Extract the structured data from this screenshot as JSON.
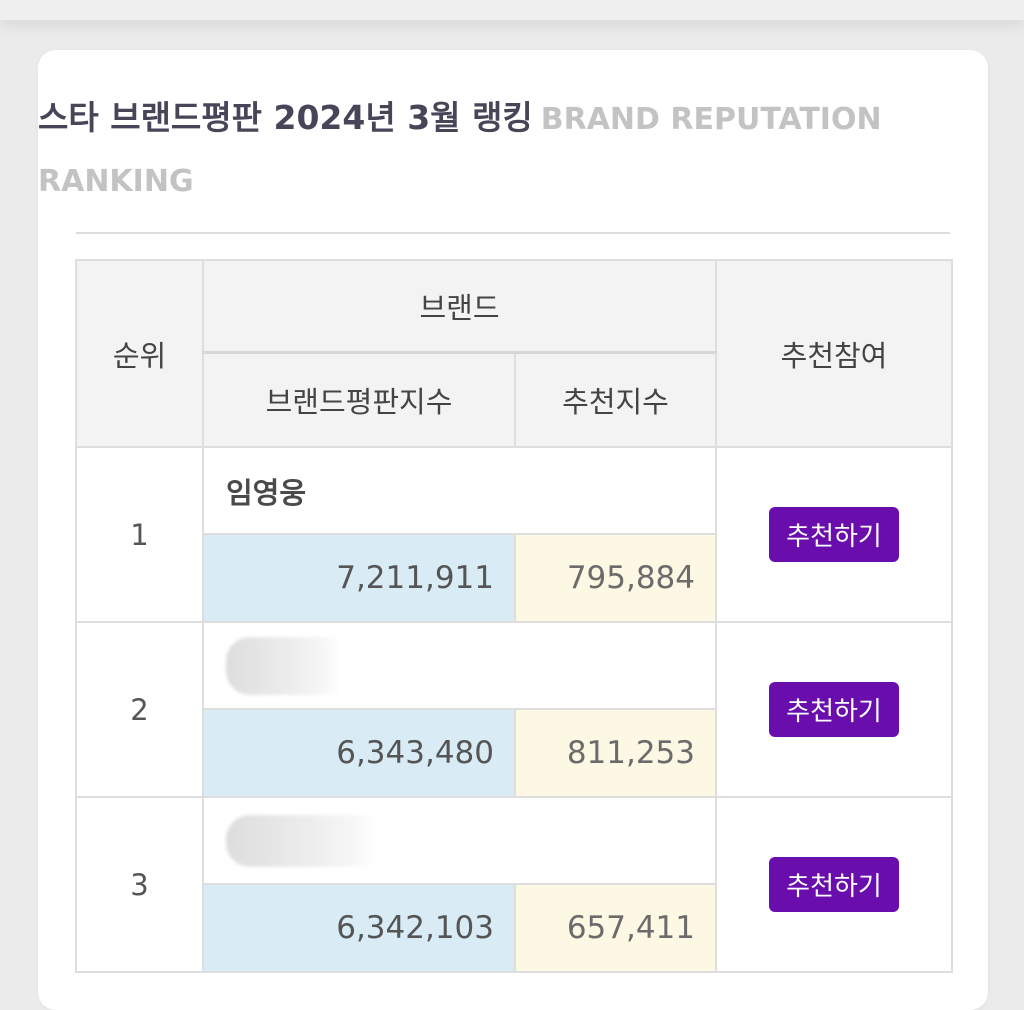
{
  "header": {
    "title": "스타 브랜드평판 2024년 3월 랭킹",
    "subtitle": "BRAND REPUTATION RANKING"
  },
  "table": {
    "col_rank": "순위",
    "col_brand": "브랜드",
    "col_brand_score": "브랜드평판지수",
    "col_recommend_score": "추천지수",
    "col_action": "추천참여",
    "rows": [
      {
        "rank": "1",
        "name": "임영웅",
        "brand_score": "7,211,911",
        "recommend_score": "795,884",
        "button": "추천하기"
      },
      {
        "rank": "2",
        "name": "",
        "brand_score": "6,343,480",
        "recommend_score": "811,253",
        "button": "추천하기"
      },
      {
        "rank": "3",
        "name": "",
        "brand_score": "6,342,103",
        "recommend_score": "657,411",
        "button": "추천하기"
      }
    ]
  },
  "colors": {
    "button": "#6a0dad",
    "brand_score_bg": "#d9ebf5",
    "recommend_score_bg": "#fdf8e4"
  }
}
